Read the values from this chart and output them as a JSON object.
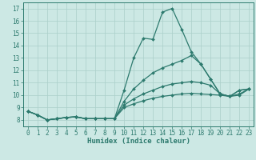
{
  "xlabel": "Humidex (Indice chaleur)",
  "background_color": "#cce8e4",
  "line_color": "#2d7a6e",
  "grid_color": "#aacfca",
  "xlim": [
    -0.5,
    23.5
  ],
  "ylim": [
    7.5,
    17.5
  ],
  "xticks": [
    0,
    1,
    2,
    3,
    4,
    5,
    6,
    7,
    8,
    9,
    10,
    11,
    12,
    13,
    14,
    15,
    16,
    17,
    18,
    19,
    20,
    21,
    22,
    23
  ],
  "yticks": [
    8,
    9,
    10,
    11,
    12,
    13,
    14,
    15,
    16,
    17
  ],
  "lines": [
    [
      8.7,
      8.4,
      8.0,
      8.1,
      8.2,
      8.25,
      8.1,
      8.1,
      8.1,
      8.1,
      10.4,
      13.0,
      14.6,
      14.5,
      16.7,
      17.0,
      15.3,
      13.5,
      12.5,
      11.3,
      10.1,
      9.9,
      10.4,
      10.5
    ],
    [
      8.7,
      8.4,
      8.0,
      8.1,
      8.2,
      8.25,
      8.1,
      8.1,
      8.1,
      8.1,
      9.5,
      10.5,
      11.2,
      11.8,
      12.2,
      12.5,
      12.8,
      13.2,
      12.5,
      11.3,
      10.1,
      9.9,
      10.4,
      10.5
    ],
    [
      8.7,
      8.4,
      8.0,
      8.1,
      8.2,
      8.25,
      8.1,
      8.1,
      8.1,
      8.1,
      9.2,
      9.7,
      10.1,
      10.4,
      10.7,
      10.9,
      11.0,
      11.1,
      11.0,
      10.8,
      10.1,
      9.9,
      10.1,
      10.5
    ],
    [
      8.7,
      8.4,
      8.0,
      8.1,
      8.2,
      8.25,
      8.1,
      8.1,
      8.1,
      8.1,
      9.0,
      9.3,
      9.55,
      9.75,
      9.9,
      10.0,
      10.1,
      10.15,
      10.1,
      10.05,
      10.0,
      9.9,
      10.0,
      10.5
    ]
  ],
  "markersize": 2.0,
  "linewidth": 0.9,
  "xlabel_fontsize": 6.5,
  "tick_fontsize": 5.5
}
